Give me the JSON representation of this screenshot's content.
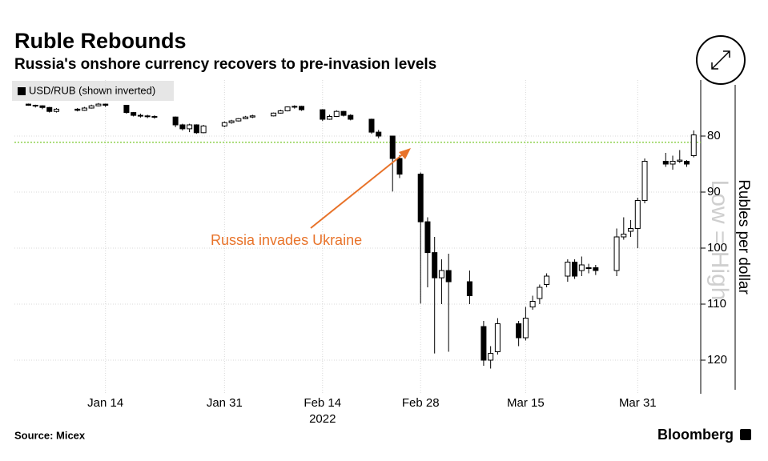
{
  "chart_data": {
    "type": "candlestick",
    "title": "Ruble Rebounds",
    "subtitle": "Russia's onshore currency recovers to pre-invasion levels",
    "legend_label": "USD/RUB (shown inverted)",
    "y_axis_label": "Rubles per dollar",
    "watermark": "Low = High",
    "source": "Source: Micex",
    "brand": "Bloomberg",
    "annotation": {
      "text": "Russia invades Ukraine",
      "color": "#e8732a"
    },
    "reference_line": {
      "value": 81.1,
      "color": "#8fd14f"
    },
    "inverted": true,
    "grid": true,
    "x": [
      "2022-01-03",
      "2022-01-04",
      "2022-01-05",
      "2022-01-06",
      "2022-01-07",
      "2022-01-10",
      "2022-01-11",
      "2022-01-12",
      "2022-01-13",
      "2022-01-14",
      "2022-01-17",
      "2022-01-18",
      "2022-01-19",
      "2022-01-20",
      "2022-01-21",
      "2022-01-24",
      "2022-01-25",
      "2022-01-26",
      "2022-01-27",
      "2022-01-28",
      "2022-01-31",
      "2022-02-01",
      "2022-02-02",
      "2022-02-03",
      "2022-02-04",
      "2022-02-07",
      "2022-02-08",
      "2022-02-09",
      "2022-02-10",
      "2022-02-11",
      "2022-02-14",
      "2022-02-15",
      "2022-02-16",
      "2022-02-17",
      "2022-02-18",
      "2022-02-21",
      "2022-02-22",
      "2022-02-24",
      "2022-02-25",
      "2022-02-28",
      "2022-03-01",
      "2022-03-02",
      "2022-03-03",
      "2022-03-04",
      "2022-03-07",
      "2022-03-09",
      "2022-03-10",
      "2022-03-11",
      "2022-03-14",
      "2022-03-15",
      "2022-03-16",
      "2022-03-17",
      "2022-03-18",
      "2022-03-21",
      "2022-03-22",
      "2022-03-23",
      "2022-03-24",
      "2022-03-25",
      "2022-03-28",
      "2022-03-29",
      "2022-03-30",
      "2022-03-31",
      "2022-04-01",
      "2022-04-04",
      "2022-04-05",
      "2022-04-06",
      "2022-04-07",
      "2022-04-08"
    ],
    "open": [
      74.3,
      74.5,
      74.6,
      74.9,
      75.6,
      75.2,
      75.4,
      75.0,
      74.6,
      74.3,
      74.5,
      75.8,
      76.3,
      76.4,
      76.5,
      76.6,
      78.0,
      78.7,
      78.0,
      79.4,
      78.2,
      77.6,
      77.3,
      76.9,
      76.6,
      76.4,
      75.9,
      75.5,
      74.8,
      74.7,
      75.3,
      77.0,
      76.5,
      75.6,
      76.3,
      77.0,
      79.3,
      80.0,
      84.0,
      86.8,
      95.3,
      100.8,
      105.3,
      104.0,
      106.0,
      114.0,
      120.0,
      118.5,
      113.5,
      116.0,
      110.5,
      109.0,
      106.5,
      105.0,
      102.5,
      104.0,
      103.5,
      103.5,
      104.0,
      98.0,
      97.0,
      96.5,
      91.5,
      84.5,
      85.0,
      84.5,
      84.5,
      83.5
    ],
    "high": [
      74.6,
      74.9,
      75.2,
      75.8,
      75.8,
      75.6,
      75.5,
      75.1,
      74.7,
      74.8,
      76.0,
      76.5,
      76.7,
      76.8,
      76.9,
      78.4,
      79.0,
      79.3,
      79.6,
      79.5,
      78.4,
      77.8,
      77.4,
      77.0,
      76.8,
      76.5,
      76.0,
      75.6,
      75.1,
      75.5,
      77.3,
      77.1,
      76.6,
      76.5,
      77.2,
      79.6,
      80.4,
      89.9,
      87.5,
      109.9,
      107.0,
      118.8,
      110.0,
      118.5,
      110.0,
      121.0,
      121.5,
      119.0,
      117.5,
      116.5,
      111.0,
      110.0,
      107.0,
      106.0,
      105.5,
      105.0,
      104.5,
      104.8,
      105.0,
      98.5,
      98.0,
      100.0,
      92.0,
      85.5,
      86.0,
      84.8,
      85.5,
      83.8
    ],
    "low": [
      74.2,
      74.4,
      74.5,
      74.8,
      75.0,
      75.0,
      74.8,
      74.4,
      74.1,
      74.2,
      74.5,
      75.7,
      76.0,
      76.2,
      76.3,
      76.5,
      77.8,
      77.8,
      77.9,
      78.0,
      77.4,
      77.1,
      76.8,
      76.4,
      76.2,
      75.8,
      75.3,
      74.7,
      74.5,
      74.6,
      75.2,
      76.2,
      75.4,
      75.5,
      76.1,
      76.9,
      78.9,
      80.0,
      83.4,
      86.5,
      94.5,
      98.0,
      102.0,
      101.0,
      104.0,
      113.0,
      117.5,
      112.5,
      113.0,
      110.5,
      108.5,
      106.5,
      104.5,
      102.0,
      102.0,
      101.5,
      102.8,
      103.0,
      96.5,
      94.5,
      95.0,
      91.0,
      84.0,
      83.0,
      83.5,
      82.5,
      84.3,
      79.0
    ],
    "close": [
      74.5,
      74.6,
      74.9,
      75.6,
      75.2,
      75.4,
      75.0,
      74.6,
      74.3,
      74.5,
      75.8,
      76.3,
      76.4,
      76.5,
      76.6,
      78.0,
      78.7,
      78.0,
      79.4,
      78.2,
      77.6,
      77.3,
      76.9,
      76.6,
      76.4,
      75.9,
      75.5,
      74.8,
      74.7,
      75.3,
      77.0,
      76.5,
      75.6,
      76.3,
      77.0,
      79.3,
      80.0,
      84.0,
      86.8,
      95.3,
      100.8,
      105.3,
      104.0,
      106.0,
      108.5,
      120.0,
      118.8,
      113.5,
      116.0,
      112.5,
      109.5,
      107.0,
      105.0,
      102.5,
      105.0,
      103.0,
      103.5,
      104.0,
      98.0,
      97.5,
      96.5,
      91.5,
      84.5,
      85.0,
      84.5,
      84.3,
      85.0,
      79.8
    ],
    "xlim": [
      "2022-01-01",
      "2022-04-09"
    ],
    "xticks": [
      {
        "value": "2022-01-14",
        "label": "Jan 14"
      },
      {
        "value": "2022-01-31",
        "label": "Jan 31"
      },
      {
        "value": "2022-02-14",
        "label": "Feb 14"
      },
      {
        "value": "2022-02-28",
        "label": "Feb 28"
      },
      {
        "value": "2022-03-15",
        "label": "Mar 15"
      },
      {
        "value": "2022-03-31",
        "label": "Mar 31"
      }
    ],
    "x_year_label": {
      "value": "2022-02-14",
      "label": "2022"
    },
    "ylim": [
      70,
      126
    ],
    "yticks": [
      80,
      90,
      100,
      110,
      120
    ]
  }
}
